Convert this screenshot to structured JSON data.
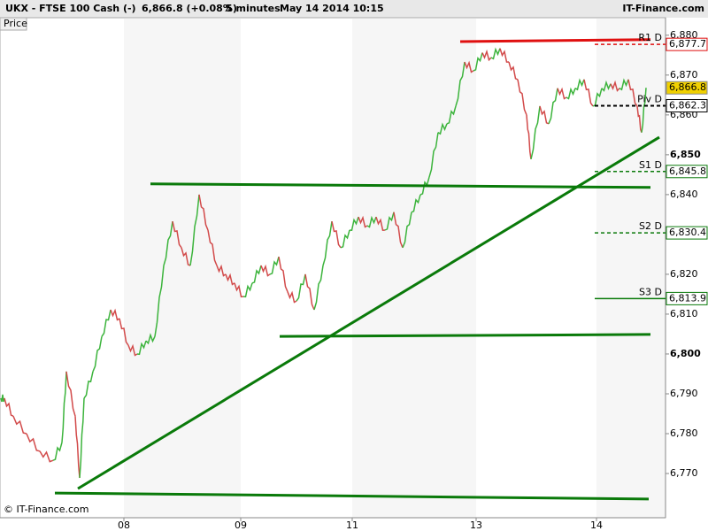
{
  "header": {
    "symbol": "UKX - FTSE 100 Cash (-)",
    "quote": "6,866.8 (+0.08%)",
    "interval": "5 minutes",
    "datetime": "May 14 2014 10:15",
    "brand": "IT-Finance.com",
    "tab": "Price",
    "copyright": "© IT-Finance.com"
  },
  "chart_data": {
    "type": "candle-line",
    "up_color": "#3cb43c",
    "down_color": "#d24a4a",
    "x": [
      5,
      15,
      30,
      45,
      60,
      70,
      75,
      85,
      90,
      95,
      105,
      115,
      125,
      135,
      145,
      155,
      165,
      175,
      185,
      195,
      205,
      215,
      225,
      235,
      245,
      255,
      265,
      275,
      285,
      295,
      305,
      315,
      325,
      335,
      345,
      355,
      365,
      375,
      385,
      395,
      405,
      415,
      425,
      435,
      445,
      455,
      465,
      475,
      485,
      495,
      505,
      515,
      525,
      535,
      545,
      555,
      565,
      575,
      585,
      595,
      600,
      610,
      620,
      630,
      640,
      650,
      660,
      670,
      680,
      690,
      700,
      710,
      720,
      725,
      730
    ],
    "values": [
      6788.9,
      6784.4,
      6780,
      6775.6,
      6773.3,
      6777.8,
      6795.6,
      6784.4,
      6768.9,
      6788.9,
      6795.6,
      6804.4,
      6811.1,
      6808.9,
      6802.2,
      6800,
      6803.3,
      6804.4,
      6822.2,
      6833.3,
      6826.7,
      6822.2,
      6840,
      6831.1,
      6822.2,
      6820,
      6817.8,
      6814.4,
      6817.8,
      6822.2,
      6820,
      6824.4,
      6815.6,
      6813.3,
      6820,
      6811.1,
      6822.2,
      6833.3,
      6826.7,
      6831.1,
      6834.4,
      6832.2,
      6834.4,
      6831.1,
      6835.6,
      6826.7,
      6835.6,
      6840,
      6844.4,
      6855.6,
      6857.8,
      6862.2,
      6873.3,
      6871.1,
      6875.6,
      6874.4,
      6876.7,
      6873.3,
      6868.9,
      6860,
      6848.9,
      6862.2,
      6857.8,
      6866.7,
      6864.4,
      6866.7,
      6868.9,
      6862.2,
      6866.7,
      6867.8,
      6866.7,
      6868.9,
      6862.2,
      6855.6,
      6866.8
    ],
    "xlim": [
      0,
      752
    ],
    "xticks": [
      {
        "value": 140,
        "label": "08"
      },
      {
        "value": 272,
        "label": "09"
      },
      {
        "value": 398,
        "label": "11"
      },
      {
        "value": 538,
        "label": "13"
      },
      {
        "value": 674,
        "label": "14"
      }
    ],
    "ylim": [
      6758.9,
      6884.4
    ],
    "yticks": [
      {
        "value": 6770,
        "label": "6,770"
      },
      {
        "value": 6780,
        "label": "6,780"
      },
      {
        "value": 6790,
        "label": "6,790"
      },
      {
        "value": 6800,
        "label": "6,800"
      },
      {
        "value": 6810,
        "label": "6,810"
      },
      {
        "value": 6820,
        "label": "6,820"
      },
      {
        "value": 6830,
        "label": "6,830"
      },
      {
        "value": 6840,
        "label": "6,840"
      },
      {
        "value": 6850,
        "label": "6,850"
      },
      {
        "value": 6860,
        "label": "6,860"
      },
      {
        "value": 6870,
        "label": "6,870"
      },
      {
        "value": 6880,
        "label": "6,880"
      }
    ],
    "bold_yticks": [
      6800,
      6850
    ],
    "trendlines": [
      {
        "color": "#e01010",
        "x": [
          520,
          735
        ],
        "y": [
          6878.4,
          6878.9
        ]
      },
      {
        "color": "#0a7a0a",
        "x": [
          88,
          745
        ],
        "y": [
          6766.2,
          6854.4
        ]
      },
      {
        "color": "#0a7a0a",
        "x": [
          170,
          735
        ],
        "y": [
          6842.7,
          6841.8
        ]
      },
      {
        "color": "#0a7a0a",
        "x": [
          316,
          735
        ],
        "y": [
          6804.4,
          6804.9
        ]
      },
      {
        "color": "#0a7a0a",
        "x": [
          62,
          733
        ],
        "y": [
          6765.1,
          6763.6
        ]
      }
    ],
    "levels": [
      {
        "name": "R1 D",
        "value": 6877.7,
        "label": "6,877.7",
        "color": "#e01010",
        "dash": true
      },
      {
        "name": "Piv D",
        "value": 6862.3,
        "label": "6,862.3",
        "color": "#000000",
        "dash": true
      },
      {
        "name": "S1 D",
        "value": 6845.8,
        "label": "6,845.8",
        "color": "#0a7a0a",
        "dash": true
      },
      {
        "name": "S2 D",
        "value": 6830.4,
        "label": "6,830.4",
        "color": "#0a7a0a",
        "dash": true
      },
      {
        "name": "S3 D",
        "value": 6813.9,
        "label": "6,813.9",
        "color": "#0a7a0a",
        "dash": false
      }
    ],
    "last": {
      "value": 6866.8,
      "label": "6,866.8",
      "color": "#f0d000"
    }
  }
}
